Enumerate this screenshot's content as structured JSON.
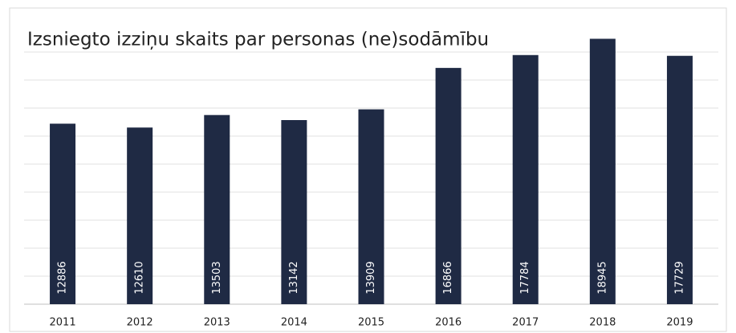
{
  "chart_data": {
    "type": "bar",
    "title": "Izsniegto izziņu skaits par personas (ne)sodāmību",
    "categories": [
      "2011",
      "2012",
      "2013",
      "2014",
      "2015",
      "2016",
      "2017",
      "2018",
      "2019"
    ],
    "values": [
      12886,
      12610,
      13503,
      13142,
      13909,
      16866,
      17784,
      18945,
      17729
    ],
    "color": "#1f2a44",
    "ylim": [
      0,
      20000
    ],
    "yticks": [
      0,
      2000,
      4000,
      6000,
      8000,
      10000,
      12000,
      14000,
      16000,
      18000
    ],
    "grid": true
  }
}
